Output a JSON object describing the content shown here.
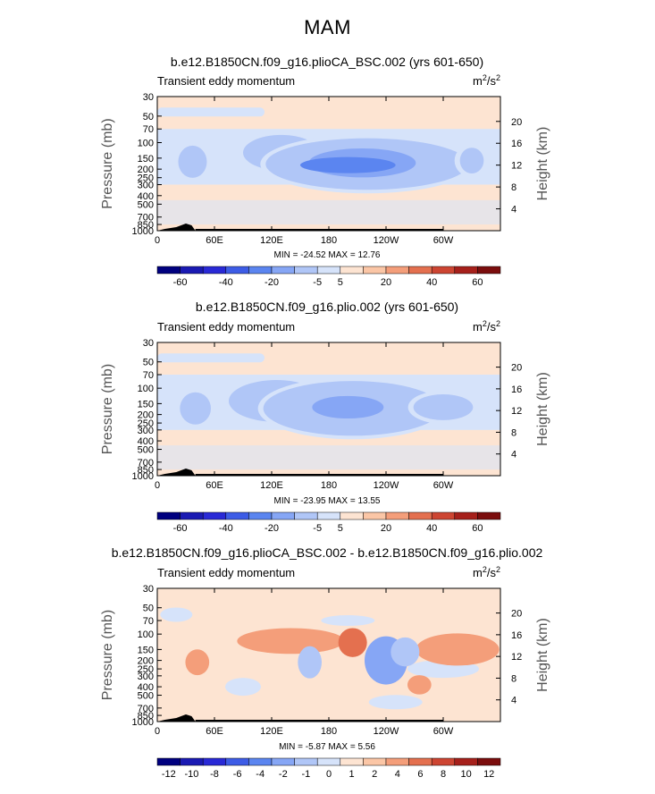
{
  "figure_title": "MAM",
  "common": {
    "left_label": "Transient eddy momentum",
    "units_base": "m",
    "units_sup1": "2",
    "units_mid": "/s",
    "units_sup2": "2",
    "y_left_label": "Pressure (mb)",
    "y_right_label": "Height (km)"
  },
  "colors": {
    "full": [
      "#00007f",
      "#1a1ab3",
      "#2929d6",
      "#3d5ce6",
      "#5b85f0",
      "#86a6f5",
      "#b0c6f7",
      "#d6e3fa",
      "#fde4d2",
      "#fbc6a6",
      "#f49e7a",
      "#e4704f",
      "#cd4532",
      "#a6201b",
      "#7b0d0d"
    ],
    "diff": [
      "#00007f",
      "#1a1ab3",
      "#2929d6",
      "#3d5ce6",
      "#5b85f0",
      "#86a6f5",
      "#b0c6f7",
      "#d6e3fa",
      "#fde4d2",
      "#fbc6a6",
      "#f49e7a",
      "#e4704f",
      "#cd4532",
      "#a6201b",
      "#7b0d0d"
    ]
  },
  "chart_data": [
    {
      "type": "heatmap",
      "title": "b.e12.B1850CN.f09_g16.plioCA_BSC.002 (yrs 601-650)",
      "xlabel": "",
      "ylabel": "Pressure (mb)",
      "y2label": "Height (km)",
      "x_ticks": [
        "0",
        "60E",
        "120E",
        "180",
        "120W",
        "60W"
      ],
      "x_tick_values": [
        0,
        60,
        120,
        180,
        240,
        300
      ],
      "xlim": [
        0,
        360
      ],
      "y_ticks": [
        "30",
        "50",
        "70",
        "100",
        "150",
        "200",
        "250",
        "300",
        "400",
        "500",
        "700",
        "850",
        "1000"
      ],
      "y_tick_values": [
        30,
        50,
        70,
        100,
        150,
        200,
        250,
        300,
        400,
        500,
        700,
        850,
        1000
      ],
      "ylim": [
        30,
        1000
      ],
      "y2_ticks": [
        "4",
        "8",
        "12",
        "16",
        "20"
      ],
      "y2_tick_values": [
        4,
        8,
        12,
        16,
        20
      ],
      "colorbar_labels": [
        "-60",
        "-40",
        "-20",
        "-5",
        "5",
        "20",
        "40",
        "60"
      ],
      "stats": {
        "min_label": "MIN = ",
        "min": "-24.52",
        "max_label": "MAX = ",
        "max": "12.76"
      },
      "features": [
        {
          "lon": 130,
          "lev": 130,
          "rx": 32,
          "ry": 22,
          "level": 6
        },
        {
          "lon": 220,
          "lev": 175,
          "rx": 85,
          "ry": 32,
          "level": 6
        },
        {
          "lon": 215,
          "lev": 170,
          "rx": 45,
          "ry": 18,
          "level": 5
        },
        {
          "lon": 37,
          "lev": 165,
          "rx": 12,
          "ry": 20,
          "level": 6
        },
        {
          "lon": 330,
          "lev": 160,
          "rx": 10,
          "ry": 16,
          "level": 6
        },
        {
          "lon": 200,
          "lev": 180,
          "rx": 40,
          "ry": 10,
          "level": 4
        }
      ]
    },
    {
      "type": "heatmap",
      "title": "b.e12.B1850CN.f09_g16.plio.002 (yrs 601-650)",
      "xlabel": "",
      "ylabel": "Pressure (mb)",
      "y2label": "Height (km)",
      "x_ticks": [
        "0",
        "60E",
        "120E",
        "180",
        "120W",
        "60W"
      ],
      "x_tick_values": [
        0,
        60,
        120,
        180,
        240,
        300
      ],
      "xlim": [
        0,
        360
      ],
      "y_ticks": [
        "30",
        "50",
        "70",
        "100",
        "150",
        "200",
        "250",
        "300",
        "400",
        "500",
        "700",
        "850",
        "1000"
      ],
      "y_tick_values": [
        30,
        50,
        70,
        100,
        150,
        200,
        250,
        300,
        400,
        500,
        700,
        850,
        1000
      ],
      "ylim": [
        30,
        1000
      ],
      "y2_ticks": [
        "4",
        "8",
        "12",
        "16",
        "20"
      ],
      "y2_tick_values": [
        4,
        8,
        12,
        16,
        20
      ],
      "colorbar_labels": [
        "-60",
        "-40",
        "-20",
        "-5",
        "5",
        "20",
        "40",
        "60"
      ],
      "stats": {
        "min_label": "MIN = ",
        "min": "-23.95",
        "max_label": "MAX = ",
        "max": "13.55"
      },
      "features": [
        {
          "lon": 125,
          "lev": 140,
          "rx": 40,
          "ry": 26,
          "level": 6
        },
        {
          "lon": 205,
          "lev": 170,
          "rx": 75,
          "ry": 34,
          "level": 6
        },
        {
          "lon": 200,
          "lev": 165,
          "rx": 30,
          "ry": 14,
          "level": 5
        },
        {
          "lon": 40,
          "lev": 170,
          "rx": 13,
          "ry": 20,
          "level": 6
        },
        {
          "lon": 300,
          "lev": 165,
          "rx": 25,
          "ry": 16,
          "level": 6
        }
      ]
    },
    {
      "type": "heatmap",
      "title": "b.e12.B1850CN.f09_g16.plioCA_BSC.002 - b.e12.B1850CN.f09_g16.plio.002",
      "xlabel": "",
      "ylabel": "Pressure (mb)",
      "y2label": "Height (km)",
      "x_ticks": [
        "0",
        "60E",
        "120E",
        "180",
        "120W",
        "60W"
      ],
      "x_tick_values": [
        0,
        60,
        120,
        180,
        240,
        300
      ],
      "xlim": [
        0,
        360
      ],
      "y_ticks": [
        "30",
        "50",
        "70",
        "100",
        "150",
        "200",
        "250",
        "300",
        "400",
        "500",
        "700",
        "850",
        "1000"
      ],
      "y_tick_values": [
        30,
        50,
        70,
        100,
        150,
        200,
        250,
        300,
        400,
        500,
        700,
        850,
        1000
      ],
      "ylim": [
        30,
        1000
      ],
      "y2_ticks": [
        "4",
        "8",
        "12",
        "16",
        "20"
      ],
      "y2_tick_values": [
        4,
        8,
        12,
        16,
        20
      ],
      "colorbar_labels": [
        "-12",
        "-10",
        "-8",
        "-6",
        "-4",
        "-2",
        "-1",
        "0",
        "1",
        "2",
        "4",
        "6",
        "8",
        "10",
        "12"
      ],
      "stats": {
        "min_label": "MIN = ",
        "min": "-5.87",
        "max_label": "MAX = ",
        "max": "5.56"
      },
      "features": [
        {
          "lon": 140,
          "lev": 120,
          "rx": 45,
          "ry": 16,
          "level": 10
        },
        {
          "lon": 205,
          "lev": 125,
          "rx": 12,
          "ry": 18,
          "level": 11
        },
        {
          "lon": 240,
          "lev": 200,
          "rx": 18,
          "ry": 30,
          "level": 5
        },
        {
          "lon": 160,
          "lev": 210,
          "rx": 10,
          "ry": 20,
          "level": 6
        },
        {
          "lon": 315,
          "lev": 150,
          "rx": 35,
          "ry": 20,
          "level": 10
        },
        {
          "lon": 42,
          "lev": 210,
          "rx": 10,
          "ry": 16,
          "level": 10
        },
        {
          "lon": 275,
          "lev": 380,
          "rx": 10,
          "ry": 12,
          "level": 10
        },
        {
          "lon": 260,
          "lev": 160,
          "rx": 12,
          "ry": 18,
          "level": 6
        }
      ]
    }
  ]
}
